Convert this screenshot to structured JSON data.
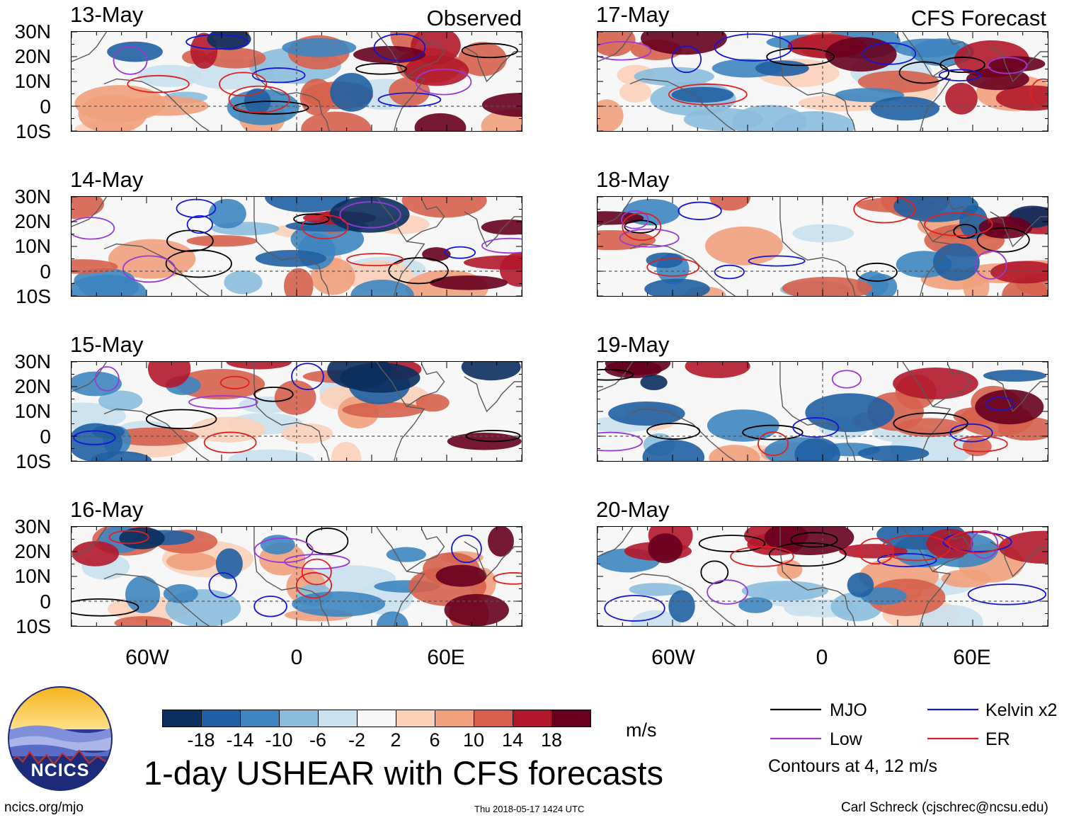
{
  "chart_data": {
    "type": "heatmap",
    "title": "1-day USHEAR with CFS forecasts",
    "variable": "USHEAR",
    "units": "m/s",
    "columns": [
      {
        "label": "Observed",
        "dates": [
          "13-May",
          "14-May",
          "15-May",
          "16-May"
        ]
      },
      {
        "label": "CFS Forecast",
        "dates": [
          "17-May",
          "18-May",
          "19-May",
          "20-May"
        ]
      }
    ],
    "lat_ticks": [
      "30N",
      "20N",
      "10N",
      "0",
      "10S"
    ],
    "lat_range": [
      -10,
      30
    ],
    "lon_ticks": [
      "60W",
      "0",
      "60E"
    ],
    "lon_range": [
      -90,
      90
    ],
    "colorbar": {
      "ticks": [
        "-18",
        "-14",
        "-10",
        "-6",
        "-2",
        "2",
        "6",
        "10",
        "14",
        "18"
      ],
      "colors": [
        "#0b2f5e",
        "#1f5fa3",
        "#3d85c0",
        "#8bbcdb",
        "#c9e0ee",
        "#f7f7f7",
        "#fbd0b9",
        "#f0a07c",
        "#d6604d",
        "#b2182b",
        "#67001f"
      ]
    },
    "contours": {
      "note": "Contours at 4, 12 m/s",
      "series": [
        {
          "name": "MJO",
          "color": "#000000"
        },
        {
          "name": "Kelvin x2",
          "color": "#1515d6"
        },
        {
          "name": "Low",
          "color": "#9a38d8"
        },
        {
          "name": "ER",
          "color": "#e02020"
        }
      ]
    }
  },
  "logo": {
    "text": "NCICS"
  },
  "footer": {
    "left": "ncics.org/mjo",
    "center": "Thu 2018-05-17 1424 UTC",
    "right": "Carl Schreck (cjschrec@ncsu.edu)"
  }
}
